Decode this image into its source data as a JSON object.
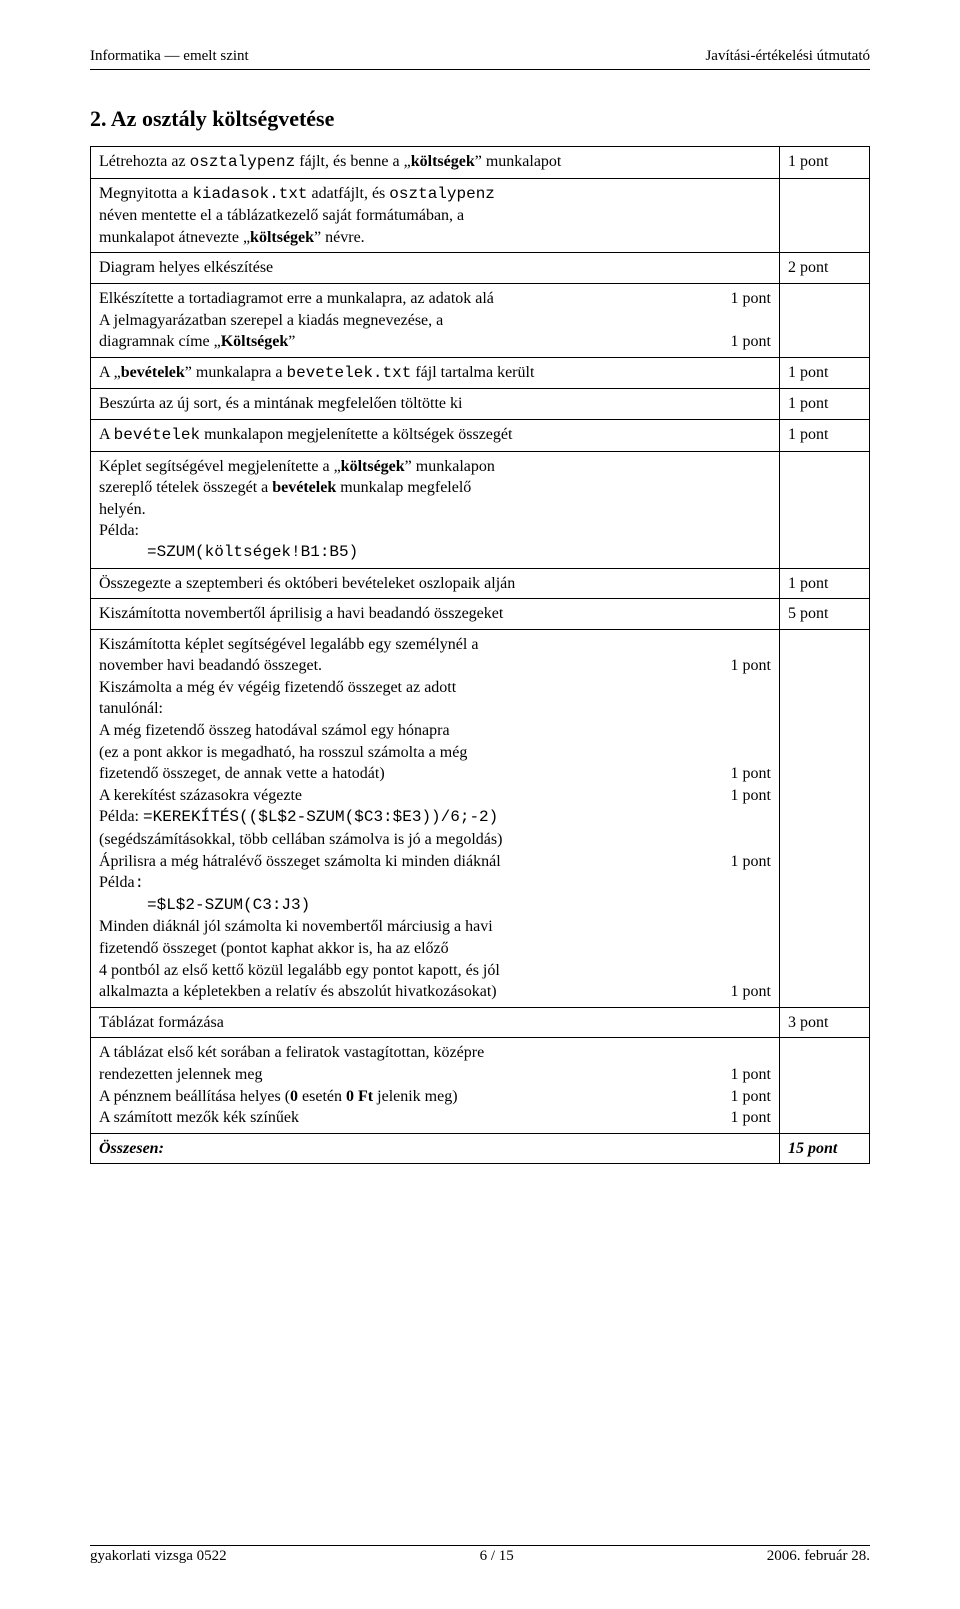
{
  "header": {
    "left": "Informatika — emelt szint",
    "right": "Javítási-értékelési útmutató"
  },
  "title": "2. Az osztály költségvetése",
  "rows": {
    "r0": {
      "text_a": "Létrehozta az ",
      "text_b": "osztalypenz",
      "text_c": " fájlt, és benne a „",
      "text_d": "költségek",
      "text_e": "” munkalapot",
      "pts": "1 pont"
    },
    "r1": {
      "l1a": "Megnyitotta a ",
      "l1b": "kiadasok.txt",
      "l1c": " adatfájlt, és ",
      "l1d": "osztalypenz",
      "l2": "néven mentette el a táblázatkezelő saját formátumában, a",
      "l3a": "munkalapot átnevezte „",
      "l3b": "költségek",
      "l3c": "” névre."
    },
    "r2": {
      "text": "Diagram helyes elkészítése",
      "pts": "2 pont"
    },
    "r3": {
      "l1": "Elkészítette a tortadiagramot erre a munkalapra, az adatok alá",
      "p1": "1 pont",
      "l2": "A jelmagyarázatban szerepel a kiadás megnevezése, a",
      "l3a": "diagramnak címe „",
      "l3b": "Költségek",
      "l3c": "”",
      "p3": "1 pont"
    },
    "r4": {
      "a": "A „",
      "b": "bevételek",
      "c": "” munkalapra a ",
      "d": "bevetelek.txt",
      "e": " fájl tartalma került",
      "pts": "1 pont"
    },
    "r5": {
      "text": "Beszúrta az új sort, és a mintának megfelelően töltötte ki",
      "pts": "1 pont"
    },
    "r6": {
      "a": "A ",
      "b": "bevételek",
      "c": " munkalapon megjelenítette a költségek összegét",
      "pts": "1 pont"
    },
    "r7": {
      "l1a": "Képlet segítségével megjelenítette a „",
      "l1b": "költségek",
      "l1c": "” munkalapon",
      "l2a": "szereplő tételek összegét a ",
      "l2b": "bevételek",
      "l2c": " munkalap megfelelő",
      "l3": "helyén.",
      "l4": "Példa:",
      "code": "=SZUM(költségek!B1:B5)"
    },
    "r8": {
      "text": "Összegezte a szeptemberi és októberi bevételeket oszlopaik alján",
      "pts": "1 pont"
    },
    "r9": {
      "text": "Kiszámította novembertől áprilisig a havi beadandó összegeket",
      "pts": "5 pont"
    },
    "r10": {
      "l1": "Kiszámította képlet segítségével legalább egy személynél a",
      "l2": "november havi beadandó összeget.",
      "p2": "1 pont",
      "l3": "Kiszámolta a még év végéig fizetendő összeget az adott",
      "l4": "tanulónál:",
      "l5": "A még fizetendő összeg hatodával számol egy hónapra",
      "l6": "(ez a pont akkor is megadható, ha rosszul számolta a még",
      "l7": "fizetendő összeget, de annak vette a hatodát)",
      "p7": "1 pont",
      "l8": "A kerekítést százasokra végezte",
      "p8": "1 pont",
      "l9a": "Példa: ",
      "l9b": "=KEREKÍTÉS(($L$2-SZUM($C3:$E3))/6;-2)",
      "l10": "(segédszámításokkal, több cellában számolva is jó a megoldás)",
      "l11": "Áprilisra a még hátralévő összeget számolta ki minden diáknál",
      "p11": "1 pont",
      "l12a": "Példa",
      "l12b": ":",
      "code2": "=$L$2-SZUM(C3:J3)",
      "l13": "Minden diáknál jól számolta ki novembertől márciusig a havi",
      "l14": "fizetendő összeget (pontot kaphat akkor is, ha az előző",
      "l15": "4 pontból az első kettő közül legalább egy pontot kapott, és jól",
      "l16": "alkalmazta a képletekben a relatív és abszolút hivatkozásokat)",
      "p16": "1 pont"
    },
    "r11": {
      "text": "Táblázat formázása",
      "pts": "3 pont"
    },
    "r12": {
      "l1": "A táblázat első két sorában a feliratok vastagítottan, középre",
      "l2": "rendezetten jelennek meg",
      "p2": "1 pont",
      "l3a": "A pénznem beállítása helyes (",
      "l3b": "0",
      "l3c": " esetén ",
      "l3d": "0 Ft",
      "l3e": " jelenik meg)",
      "p3": "1 pont",
      "l4": "A számított mezők kék színűek",
      "p4": "1 pont"
    },
    "total": {
      "label": "Összesen:",
      "pts": "15 pont"
    }
  },
  "footer": {
    "left": "gyakorlati vizsga 0522",
    "center": "6 / 15",
    "right": "2006. február 28."
  }
}
